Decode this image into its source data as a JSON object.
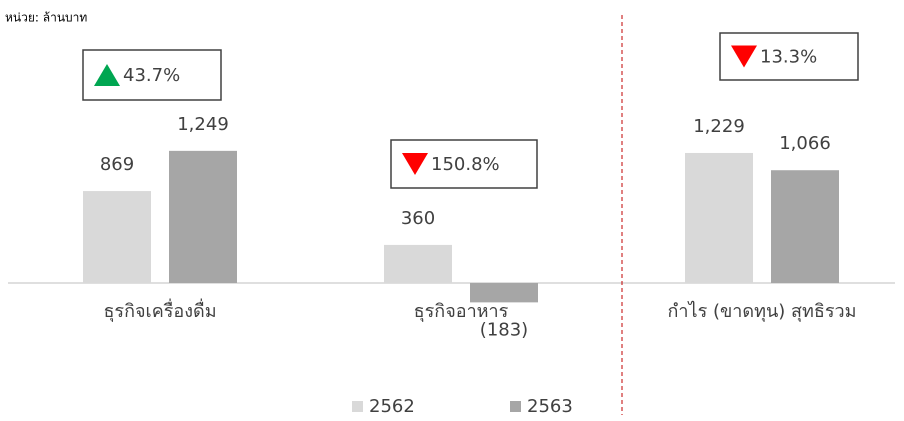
{
  "chart_data": {
    "type": "bar",
    "unit_label": "หน่วย: ล้านบาท",
    "categories": [
      "ธุรกิจเครื่องดื่ม",
      "ธุรกิจอาหาร",
      "กำไร (ขาดทุน) สุทธิรวม"
    ],
    "series": [
      {
        "name": "2562",
        "color": "#d9d9d9",
        "values": [
          869,
          360,
          1229
        ],
        "value_labels": [
          "869",
          "360",
          "1,229"
        ]
      },
      {
        "name": "2563",
        "color": "#a6a6a6",
        "values": [
          1249,
          -183,
          1066
        ],
        "value_labels": [
          "1,249",
          "(183)",
          "1,066"
        ]
      }
    ],
    "annotations": [
      {
        "value": 43.7,
        "label": "43.7%",
        "direction": "up",
        "color": "#00a651"
      },
      {
        "value": 150.8,
        "label": "150.8%",
        "direction": "down",
        "color": "#ff0000"
      },
      {
        "value": 13.3,
        "label": "13.3%",
        "direction": "down",
        "color": "#ff0000"
      }
    ],
    "legend": "bottom"
  }
}
